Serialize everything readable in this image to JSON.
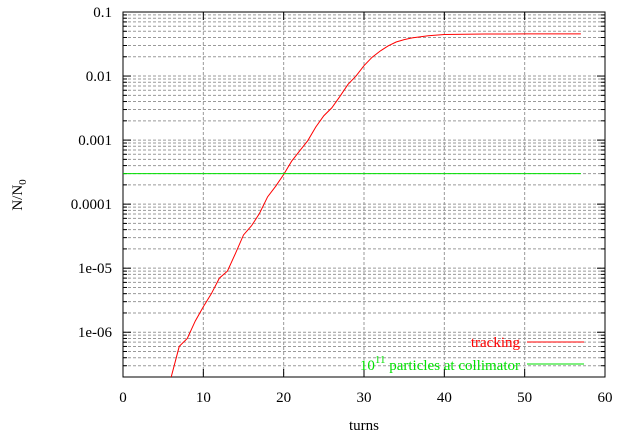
{
  "chart_data": {
    "type": "line",
    "xlabel": "turns",
    "ylabel": "N/N",
    "ylabel_sub": "0",
    "xlim": [
      0,
      60
    ],
    "ylim": [
      2e-07,
      0.1
    ],
    "yscale": "log",
    "grid": true,
    "legend_position": "bottom-right",
    "x_ticks": [
      0,
      10,
      20,
      30,
      40,
      50,
      60
    ],
    "x_tick_labels": [
      "0",
      "10",
      "20",
      "30",
      "40",
      "50",
      "60"
    ],
    "y_ticks": [
      1e-06,
      1e-05,
      0.0001,
      0.001,
      0.01,
      0.1
    ],
    "y_tick_labels": [
      "1e-06",
      "1e-05",
      "0.0001",
      "0.001",
      "0.01",
      "0.1"
    ],
    "series": [
      {
        "name": "tracking",
        "color": "#ff0000",
        "x": [
          6,
          7,
          8,
          9,
          10,
          11,
          12,
          13,
          14,
          15,
          16,
          17,
          18,
          19,
          20,
          21,
          22,
          23,
          24,
          25,
          26,
          27,
          28,
          29,
          30,
          31,
          32,
          33,
          34,
          35,
          36,
          38,
          40,
          45,
          50,
          57
        ],
        "y": [
          2e-07,
          6e-07,
          8e-07,
          1.5e-06,
          2.5e-06,
          4e-06,
          7e-06,
          9e-06,
          1.7e-05,
          3.3e-05,
          4.6e-05,
          7.2e-05,
          0.00013,
          0.00019,
          0.00029,
          0.00047,
          0.00068,
          0.00098,
          0.0016,
          0.0024,
          0.0032,
          0.0048,
          0.0074,
          0.01,
          0.0145,
          0.0196,
          0.0245,
          0.0295,
          0.034,
          0.037,
          0.0395,
          0.0425,
          0.0445,
          0.0453,
          0.0455,
          0.0455
        ]
      },
      {
        "name": "particles at collimator",
        "name_base": "10",
        "name_exp": "11",
        "color": "#00e000",
        "x": [
          0,
          57
        ],
        "y": [
          0.0003,
          0.0003
        ]
      }
    ]
  }
}
